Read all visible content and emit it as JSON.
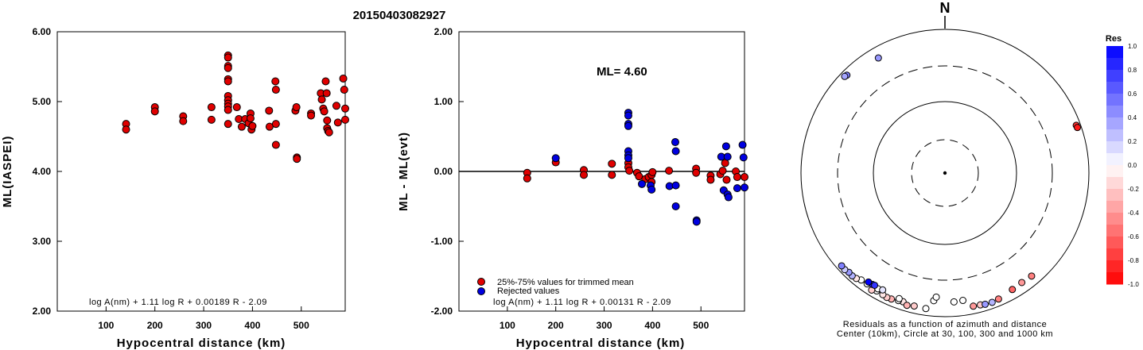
{
  "title": "20150403082927",
  "chart_data": [
    {
      "type": "scatter",
      "xlabel": "Hypocentral distance (km)",
      "ylabel": "ML(IASPEI)",
      "xlim": [
        0,
        590
      ],
      "ylim": [
        2.0,
        6.0
      ],
      "xticks": [
        "100",
        "200",
        "300",
        "400",
        "500"
      ],
      "yticks": [
        "2.00",
        "3.00",
        "4.00",
        "5.00",
        "6.00"
      ],
      "formula": "log A(nm) + 1.11 log R + 0.00189 R - 2.09",
      "color": "#e00000",
      "points": [
        [
          141,
          4.68
        ],
        [
          141,
          4.6
        ],
        [
          200,
          4.92
        ],
        [
          200,
          4.86
        ],
        [
          258,
          4.79
        ],
        [
          258,
          4.72
        ],
        [
          316,
          4.92
        ],
        [
          316,
          4.74
        ],
        [
          350,
          5.66
        ],
        [
          350,
          5.63
        ],
        [
          350,
          5.51
        ],
        [
          350,
          5.48
        ],
        [
          350,
          5.32
        ],
        [
          350,
          5.29
        ],
        [
          350,
          5.08
        ],
        [
          350,
          5.02
        ],
        [
          350,
          4.97
        ],
        [
          350,
          4.93
        ],
        [
          350,
          4.88
        ],
        [
          350,
          4.68
        ],
        [
          368,
          4.92
        ],
        [
          372,
          4.75
        ],
        [
          378,
          4.64
        ],
        [
          385,
          4.75
        ],
        [
          392,
          4.69
        ],
        [
          396,
          4.83
        ],
        [
          396,
          4.76
        ],
        [
          398,
          4.6
        ],
        [
          400,
          4.65
        ],
        [
          434,
          4.87
        ],
        [
          435,
          4.64
        ],
        [
          447,
          5.29
        ],
        [
          448,
          5.17
        ],
        [
          448,
          4.68
        ],
        [
          448,
          4.38
        ],
        [
          488,
          4.87
        ],
        [
          490,
          4.92
        ],
        [
          491,
          4.2
        ],
        [
          491,
          4.18
        ],
        [
          520,
          4.83
        ],
        [
          520,
          4.8
        ],
        [
          540,
          5.12
        ],
        [
          542,
          5.03
        ],
        [
          545,
          4.9
        ],
        [
          547,
          4.86
        ],
        [
          550,
          5.29
        ],
        [
          552,
          5.12
        ],
        [
          553,
          4.73
        ],
        [
          553,
          4.62
        ],
        [
          555,
          4.58
        ],
        [
          557,
          4.56
        ],
        [
          572,
          4.94
        ],
        [
          575,
          4.7
        ],
        [
          586,
          5.33
        ],
        [
          588,
          5.17
        ],
        [
          590,
          4.9
        ],
        [
          590,
          4.74
        ]
      ]
    },
    {
      "type": "scatter",
      "xlabel": "Hypocentral distance (km)",
      "ylabel": "ML - ML(evt)",
      "xlim": [
        0,
        590
      ],
      "ylim": [
        -2.0,
        2.0
      ],
      "xticks": [
        "100",
        "200",
        "300",
        "400",
        "500"
      ],
      "yticks": [
        "-2.00",
        "-1.00",
        "0.00",
        "1.00",
        "2.00"
      ],
      "annotation": "ML= 4.60",
      "formula": "log A(nm) + 1.11 log R + 0.00131 R - 2.09",
      "series": [
        {
          "name": "25%-75% values for trimmed mean",
          "color": "#e00000",
          "points": [
            [
              141,
              -0.02
            ],
            [
              141,
              -0.1
            ],
            [
              200,
              0.13
            ],
            [
              258,
              0.02
            ],
            [
              258,
              -0.05
            ],
            [
              316,
              0.11
            ],
            [
              316,
              -0.05
            ],
            [
              350,
              0.12
            ],
            [
              350,
              0.06
            ],
            [
              352,
              0.01
            ],
            [
              368,
              -0.02
            ],
            [
              372,
              -0.07
            ],
            [
              385,
              -0.11
            ],
            [
              392,
              -0.08
            ],
            [
              398,
              -0.05
            ],
            [
              398,
              -0.15
            ],
            [
              400,
              -0.01
            ],
            [
              434,
              0.01
            ],
            [
              490,
              0.04
            ],
            [
              490,
              -0.02
            ],
            [
              520,
              -0.06
            ],
            [
              520,
              -0.12
            ],
            [
              540,
              -0.04
            ],
            [
              545,
              0.01
            ],
            [
              550,
              0.12
            ],
            [
              553,
              -0.12
            ],
            [
              572,
              0.0
            ],
            [
              575,
              -0.08
            ],
            [
              590,
              -0.08
            ]
          ]
        },
        {
          "name": "Rejected values",
          "color": "#0000e0",
          "points": [
            [
              200,
              0.19
            ],
            [
              350,
              0.84
            ],
            [
              350,
              0.8
            ],
            [
              350,
              0.68
            ],
            [
              350,
              0.65
            ],
            [
              350,
              0.29
            ],
            [
              350,
              0.23
            ],
            [
              350,
              0.19
            ],
            [
              378,
              -0.18
            ],
            [
              396,
              -0.2
            ],
            [
              398,
              -0.26
            ],
            [
              435,
              -0.21
            ],
            [
              447,
              0.42
            ],
            [
              448,
              0.29
            ],
            [
              448,
              -0.2
            ],
            [
              448,
              -0.5
            ],
            [
              491,
              -0.7
            ],
            [
              491,
              -0.72
            ],
            [
              542,
              0.21
            ],
            [
              547,
              -0.27
            ],
            [
              552,
              0.36
            ],
            [
              555,
              0.21
            ],
            [
              555,
              -0.33
            ],
            [
              557,
              -0.37
            ],
            [
              575,
              -0.24
            ],
            [
              586,
              0.38
            ],
            [
              588,
              0.2
            ],
            [
              590,
              -0.23
            ]
          ]
        }
      ]
    },
    {
      "type": "polar-scatter",
      "north_label": "N",
      "caption_line1": "Residuals as a function of azimuth and distance",
      "caption_line2": "Center (10km), Circle at 30, 100, 300 and 1000 km",
      "colorbar_title": "Res",
      "colorbar_ticks": [
        "1.0",
        "0.8",
        "0.6",
        "0.4",
        "0.2",
        "0.0",
        "-0.2",
        "-0.4",
        "-0.6",
        "-0.8",
        "-1.0"
      ],
      "points": [
        [
          315,
          840,
          0.5
        ],
        [
          314,
          860,
          0.35
        ],
        [
          330,
          700,
          0.4
        ],
        [
          70,
          870,
          -0.8
        ],
        [
          71,
          880,
          -0.9
        ],
        [
          215,
          760,
          0.0
        ],
        [
          218,
          770,
          0.0
        ],
        [
          220,
          820,
          -0.1
        ],
        [
          222,
          840,
          0.3
        ],
        [
          224,
          830,
          0.4
        ],
        [
          226,
          860,
          0.2
        ],
        [
          228,
          850,
          0.5
        ],
        [
          203,
          800,
          -0.3
        ],
        [
          205,
          810,
          -0.2
        ],
        [
          207,
          790,
          -0.1
        ],
        [
          210,
          780,
          0.0
        ],
        [
          212,
          830,
          -0.2
        ],
        [
          198,
          760,
          -0.1
        ],
        [
          200,
          770,
          0.0
        ],
        [
          196,
          820,
          -0.3
        ],
        [
          193,
          790,
          -0.2
        ],
        [
          188,
          800,
          0.0
        ],
        [
          210,
          720,
          0.0
        ],
        [
          213,
          700,
          0.9
        ],
        [
          215,
          705,
          1.0
        ],
        [
          212,
          690,
          0.8
        ],
        [
          208,
          690,
          0.1
        ],
        [
          200,
          720,
          0.0
        ],
        [
          185,
          600,
          0.0
        ],
        [
          176,
          620,
          0.0
        ],
        [
          172,
          610,
          0.0
        ],
        [
          168,
          780,
          -0.4
        ],
        [
          165,
          790,
          -0.2
        ],
        [
          163,
          810,
          0.4
        ],
        [
          160,
          820,
          0.3
        ],
        [
          157,
          800,
          -0.5
        ],
        [
          150,
          740,
          -0.6
        ],
        [
          145,
          720,
          -0.4
        ],
        [
          140,
          740,
          -0.5
        ],
        [
          184,
          530,
          0.0
        ]
      ]
    }
  ]
}
